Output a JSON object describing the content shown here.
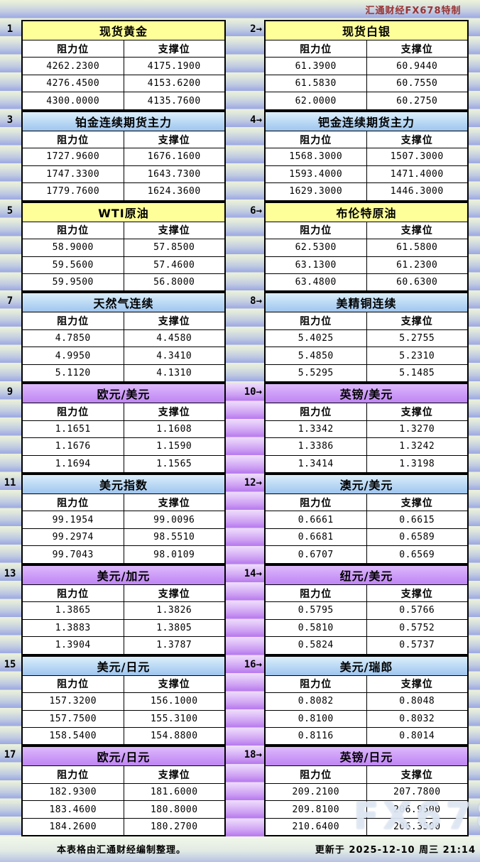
{
  "header": {
    "brand": "汇通财经FX678特制"
  },
  "labels": {
    "resistance": "阻力位",
    "support": "支撑位"
  },
  "footer": {
    "left": "本表格由汇通财经编制整理。",
    "right": "更新于 2025-12-10 周三 21:14",
    "watermark": "FX678"
  },
  "colors": {
    "title_yellow": "#FFFF99",
    "title_blue_top": "#DCEFFB",
    "title_blue_bottom": "#9FC5EF",
    "title_purple_top": "#DDB9FC",
    "title_purple_bottom": "#BF86F3",
    "gutter_purple": "#BB81EF",
    "stripe_green_top": "#ECF2DB",
    "stripe_blue_bottom": "#9DA9E0",
    "brand_text": "#993333"
  },
  "panels": [
    {
      "num_label": "1",
      "title": "现货黄金",
      "color": "yellow",
      "resistance": [
        "4262.2300",
        "4276.4500",
        "4300.0000"
      ],
      "support": [
        "4175.1900",
        "4153.6200",
        "4135.7600"
      ]
    },
    {
      "num_label": "2→",
      "title": "现货白银",
      "color": "yellow",
      "resistance": [
        "61.3900",
        "61.5830",
        "62.0000"
      ],
      "support": [
        "60.9440",
        "60.7550",
        "60.2750"
      ]
    },
    {
      "num_label": "3",
      "title": "铂金连续期货主力",
      "color": "blue",
      "resistance": [
        "1727.9600",
        "1747.3300",
        "1779.7600"
      ],
      "support": [
        "1676.1600",
        "1643.7300",
        "1624.3600"
      ]
    },
    {
      "num_label": "4→",
      "title": "钯金连续期货主力",
      "color": "blue",
      "resistance": [
        "1568.3000",
        "1593.4000",
        "1629.3000"
      ],
      "support": [
        "1507.3000",
        "1471.4000",
        "1446.3000"
      ]
    },
    {
      "num_label": "5",
      "title": "WTI原油",
      "color": "yellow",
      "resistance": [
        "58.9000",
        "59.5600",
        "59.9500"
      ],
      "support": [
        "57.8500",
        "57.4600",
        "56.8000"
      ]
    },
    {
      "num_label": "6→",
      "title": "布伦特原油",
      "color": "yellow",
      "resistance": [
        "62.5300",
        "63.1300",
        "63.4800"
      ],
      "support": [
        "61.5800",
        "61.2300",
        "60.6300"
      ]
    },
    {
      "num_label": "7",
      "title": "天然气连续",
      "color": "blue",
      "resistance": [
        "4.7850",
        "4.9950",
        "5.1120"
      ],
      "support": [
        "4.4580",
        "4.3410",
        "4.1310"
      ]
    },
    {
      "num_label": "8→",
      "title": "美精铜连续",
      "color": "blue",
      "resistance": [
        "5.4025",
        "5.4850",
        "5.5295"
      ],
      "support": [
        "5.2755",
        "5.2310",
        "5.1485"
      ]
    },
    {
      "num_label": "9",
      "title": "欧元/美元",
      "color": "purple",
      "resistance": [
        "1.1651",
        "1.1676",
        "1.1694"
      ],
      "support": [
        "1.1608",
        "1.1590",
        "1.1565"
      ]
    },
    {
      "num_label": "10→",
      "title": "英镑/美元",
      "color": "purple",
      "resistance": [
        "1.3342",
        "1.3386",
        "1.3414"
      ],
      "support": [
        "1.3270",
        "1.3242",
        "1.3198"
      ]
    },
    {
      "num_label": "11",
      "title": "美元指数",
      "color": "blue",
      "resistance": [
        "99.1954",
        "99.2974",
        "99.7043"
      ],
      "support": [
        "99.0096",
        "98.5510",
        "98.0109"
      ]
    },
    {
      "num_label": "12→",
      "title": "澳元/美元",
      "color": "blue",
      "resistance": [
        "0.6661",
        "0.6681",
        "0.6707"
      ],
      "support": [
        "0.6615",
        "0.6589",
        "0.6569"
      ]
    },
    {
      "num_label": "13",
      "title": "美元/加元",
      "color": "purple",
      "resistance": [
        "1.3865",
        "1.3883",
        "1.3904"
      ],
      "support": [
        "1.3826",
        "1.3805",
        "1.3787"
      ]
    },
    {
      "num_label": "14→",
      "title": "纽元/美元",
      "color": "purple",
      "resistance": [
        "0.5795",
        "0.5810",
        "0.5824"
      ],
      "support": [
        "0.5766",
        "0.5752",
        "0.5737"
      ]
    },
    {
      "num_label": "15",
      "title": "美元/日元",
      "color": "blue",
      "resistance": [
        "157.3200",
        "157.7500",
        "158.5400"
      ],
      "support": [
        "156.1000",
        "155.3100",
        "154.8800"
      ]
    },
    {
      "num_label": "16→",
      "title": "美元/瑞郎",
      "color": "blue",
      "resistance": [
        "0.8082",
        "0.8100",
        "0.8116"
      ],
      "support": [
        "0.8048",
        "0.8032",
        "0.8014"
      ]
    },
    {
      "num_label": "17",
      "title": "欧元/日元",
      "color": "purple",
      "resistance": [
        "182.9300",
        "183.4600",
        "184.2600"
      ],
      "support": [
        "181.6000",
        "180.8000",
        "180.2700"
      ]
    },
    {
      "num_label": "18→",
      "title": "英镑/日元",
      "color": "purple",
      "resistance": [
        "209.2100",
        "209.8100",
        "210.6400"
      ],
      "support": [
        "207.7800",
        "206.9500",
        "206.3500"
      ]
    }
  ]
}
